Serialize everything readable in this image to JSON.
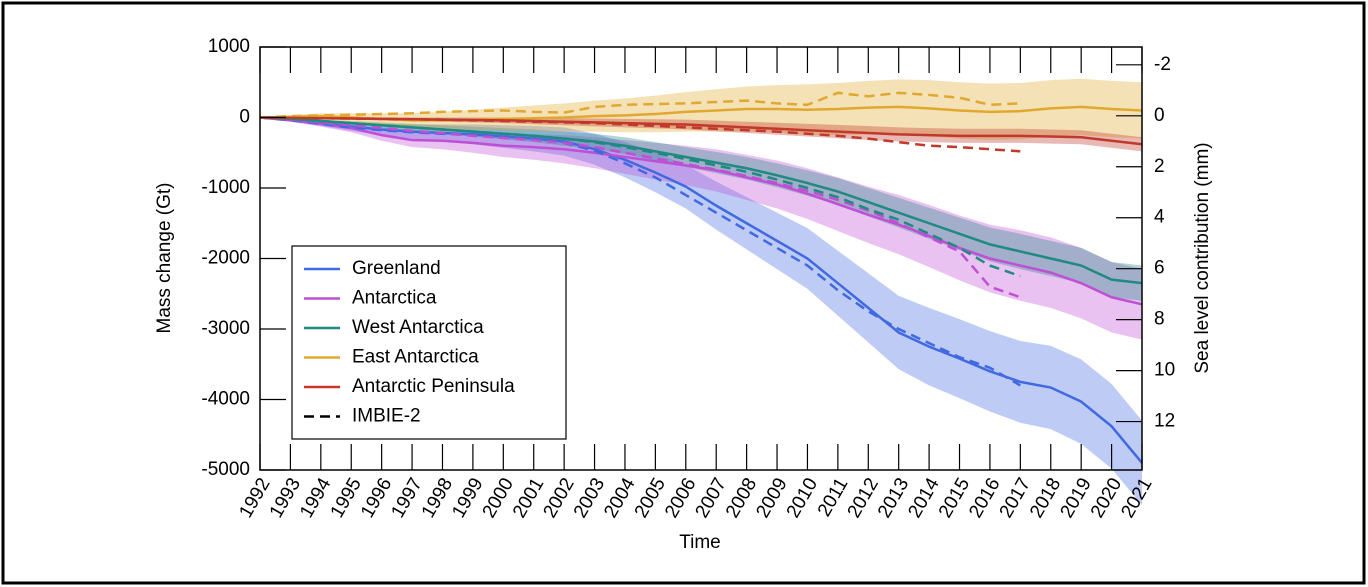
{
  "chart_data": {
    "type": "line",
    "xlabel": "Time",
    "ylabel": "Mass change (Gt)",
    "y2label": "Sea level contribution (mm)",
    "x": [
      1992,
      1993,
      1994,
      1995,
      1996,
      1997,
      1998,
      1999,
      2000,
      2001,
      2002,
      2003,
      2004,
      2005,
      2006,
      2007,
      2008,
      2009,
      2010,
      2011,
      2012,
      2013,
      2014,
      2015,
      2016,
      2017,
      2018,
      2019,
      2020,
      2021
    ],
    "xlim": [
      1992,
      2021
    ],
    "xticks": [
      1992,
      1993,
      1994,
      1995,
      1996,
      1997,
      1998,
      1999,
      2000,
      2001,
      2002,
      2003,
      2004,
      2005,
      2006,
      2007,
      2008,
      2009,
      2010,
      2011,
      2012,
      2013,
      2014,
      2015,
      2016,
      2017,
      2018,
      2019,
      2020,
      2021
    ],
    "ylim": [
      -5000,
      1000
    ],
    "yticks": [
      -5000,
      -4000,
      -3000,
      -2000,
      -1000,
      0,
      1000
    ],
    "y2lim": [
      13.9,
      -2.7
    ],
    "y2ticks": [
      -2,
      0,
      2,
      4,
      6,
      8,
      10,
      12
    ],
    "legend": "lower-left",
    "series": [
      {
        "name": "Greenland",
        "color": "#4169e1",
        "values": [
          0,
          -30,
          -80,
          -130,
          -170,
          -200,
          -220,
          -240,
          -270,
          -300,
          -340,
          -450,
          -600,
          -780,
          -980,
          -1250,
          -1500,
          -1750,
          -2000,
          -2350,
          -2700,
          -3050,
          -3250,
          -3420,
          -3600,
          -3750,
          -3830,
          -4030,
          -4380,
          -4900
        ],
        "uncertainty": [
          0,
          20,
          40,
          60,
          80,
          100,
          120,
          140,
          160,
          180,
          200,
          220,
          250,
          280,
          310,
          340,
          370,
          400,
          430,
          460,
          490,
          520,
          550,
          560,
          570,
          580,
          590,
          600,
          600,
          600
        ]
      },
      {
        "name": "Antarctica",
        "color": "#bf4fd6",
        "values": [
          0,
          -40,
          -90,
          -150,
          -250,
          -320,
          -330,
          -360,
          -400,
          -420,
          -450,
          -500,
          -560,
          -620,
          -680,
          -750,
          -850,
          -950,
          -1080,
          -1230,
          -1380,
          -1520,
          -1680,
          -1850,
          -2000,
          -2100,
          -2200,
          -2350,
          -2550,
          -2650
        ],
        "uncertainty": [
          0,
          20,
          40,
          60,
          80,
          100,
          120,
          140,
          160,
          180,
          200,
          220,
          240,
          260,
          280,
          300,
          320,
          340,
          360,
          380,
          400,
          420,
          440,
          460,
          480,
          500,
          500,
          500,
          500,
          500
        ]
      },
      {
        "name": "West Antarctica",
        "color": "#1f8a80",
        "values": [
          0,
          -20,
          -50,
          -80,
          -110,
          -140,
          -170,
          -200,
          -230,
          -260,
          -300,
          -340,
          -400,
          -480,
          -560,
          -640,
          -720,
          -820,
          -930,
          -1050,
          -1200,
          -1350,
          -1500,
          -1650,
          -1800,
          -1900,
          -2000,
          -2100,
          -2300,
          -2350
        ],
        "uncertainty": [
          0,
          10,
          20,
          30,
          40,
          50,
          60,
          70,
          80,
          90,
          100,
          110,
          120,
          130,
          140,
          150,
          160,
          170,
          180,
          190,
          200,
          210,
          220,
          230,
          240,
          250,
          250,
          250,
          250,
          250
        ]
      },
      {
        "name": "East Antarctica",
        "color": "#e0a82e",
        "values": [
          0,
          10,
          20,
          0,
          -20,
          -40,
          -40,
          -30,
          -20,
          -10,
          0,
          20,
          30,
          50,
          80,
          100,
          120,
          120,
          110,
          120,
          140,
          150,
          130,
          100,
          80,
          90,
          130,
          150,
          120,
          100
        ],
        "uncertainty": [
          0,
          20,
          40,
          60,
          80,
          100,
          120,
          140,
          160,
          180,
          200,
          220,
          240,
          260,
          280,
          300,
          320,
          340,
          360,
          370,
          380,
          390,
          400,
          400,
          400,
          400,
          400,
          400,
          400,
          400
        ]
      },
      {
        "name": "Antarctic Peninsula",
        "color": "#c0392b",
        "values": [
          0,
          -5,
          -10,
          -15,
          -20,
          -25,
          -30,
          -35,
          -40,
          -50,
          -60,
          -70,
          -80,
          -90,
          -100,
          -120,
          -140,
          -160,
          -180,
          -200,
          -220,
          -240,
          -250,
          -260,
          -260,
          -260,
          -270,
          -280,
          -330,
          -380
        ],
        "uncertainty": [
          0,
          5,
          10,
          15,
          20,
          25,
          30,
          35,
          40,
          45,
          50,
          55,
          60,
          65,
          70,
          75,
          80,
          85,
          90,
          95,
          100,
          100,
          100,
          100,
          100,
          100,
          100,
          100,
          100,
          100
        ]
      }
    ],
    "reference": {
      "name": "IMBIE-2",
      "x": [
        1992,
        1993,
        1994,
        1995,
        1996,
        1997,
        1998,
        1999,
        2000,
        2001,
        2002,
        2003,
        2004,
        2005,
        2006,
        2007,
        2008,
        2009,
        2010,
        2011,
        2012,
        2013,
        2014,
        2015,
        2016,
        2017
      ],
      "series": [
        {
          "color": "#4169e1",
          "values": [
            0,
            -40,
            -90,
            -140,
            -180,
            -210,
            -230,
            -250,
            -280,
            -310,
            -360,
            -470,
            -650,
            -850,
            -1100,
            -1350,
            -1600,
            -1850,
            -2100,
            -2450,
            -2750,
            -3000,
            -3200,
            -3400,
            -3550,
            -3800
          ]
        },
        {
          "color": "#bf4fd6",
          "values": [
            0,
            -30,
            -70,
            -110,
            -150,
            -190,
            -220,
            -260,
            -290,
            -320,
            -360,
            -420,
            -500,
            -580,
            -660,
            -740,
            -830,
            -930,
            -1040,
            -1170,
            -1320,
            -1500,
            -1700,
            -1900,
            -2400,
            -2550
          ]
        },
        {
          "color": "#1f8a80",
          "values": [
            0,
            -20,
            -50,
            -80,
            -110,
            -140,
            -170,
            -200,
            -230,
            -260,
            -300,
            -350,
            -420,
            -500,
            -590,
            -680,
            -770,
            -880,
            -1000,
            -1130,
            -1300,
            -1450,
            -1650,
            -1850,
            -2100,
            -2250
          ]
        },
        {
          "color": "#e0a82e",
          "values": [
            0,
            20,
            30,
            40,
            50,
            60,
            80,
            90,
            100,
            80,
            70,
            150,
            180,
            190,
            200,
            220,
            240,
            200,
            180,
            350,
            300,
            350,
            320,
            280,
            180,
            200
          ]
        },
        {
          "color": "#c0392b",
          "values": [
            0,
            -5,
            -10,
            -15,
            -20,
            -25,
            -30,
            -40,
            -50,
            -60,
            -70,
            -80,
            -100,
            -120,
            -140,
            -160,
            -180,
            -200,
            -230,
            -260,
            -300,
            -350,
            -400,
            -420,
            -450,
            -480
          ]
        }
      ]
    }
  }
}
